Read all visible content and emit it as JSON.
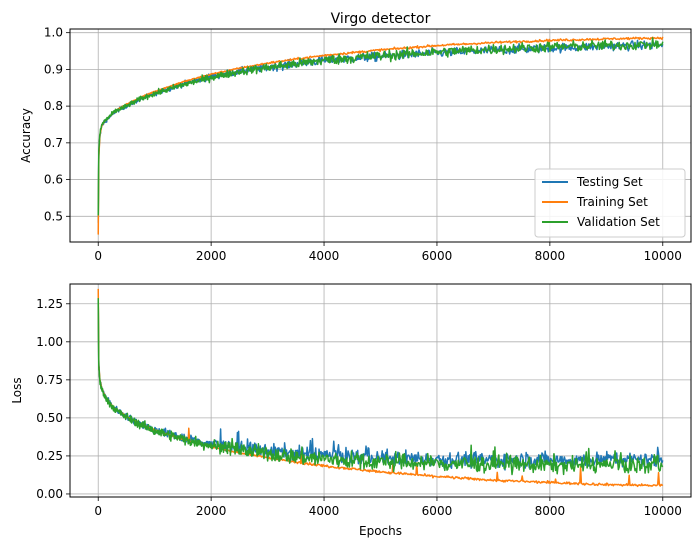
{
  "chart_data": [
    {
      "type": "line",
      "title": "Virgo detector",
      "xlabel": "",
      "ylabel": "Accuracy",
      "xlim": [
        -500,
        10500
      ],
      "ylim": [
        0.43,
        1.01
      ],
      "grid": true,
      "legend": "lower right",
      "xticks": [
        0,
        2000,
        4000,
        6000,
        8000,
        10000
      ],
      "yticks": [
        0.5,
        0.6,
        0.7,
        0.8,
        0.9,
        1.0
      ],
      "ytick_labels": [
        "0.5",
        "0.6",
        "0.7",
        "0.8",
        "0.9",
        "1.0"
      ],
      "x": [
        0,
        10,
        30,
        60,
        100,
        200,
        300,
        500,
        750,
        1000,
        1500,
        2000,
        2500,
        3000,
        3500,
        4000,
        5000,
        6000,
        7000,
        8000,
        9000,
        10000
      ],
      "series": [
        {
          "name": "Testing Set",
          "color": "#1f77b4",
          "noise": 0.006,
          "values": [
            0.48,
            0.67,
            0.72,
            0.745,
            0.755,
            0.77,
            0.785,
            0.8,
            0.82,
            0.835,
            0.86,
            0.88,
            0.895,
            0.905,
            0.915,
            0.925,
            0.935,
            0.945,
            0.952,
            0.958,
            0.963,
            0.967
          ]
        },
        {
          "name": "Training Set",
          "color": "#ff7f0e",
          "noise": 0.0015,
          "values": [
            0.45,
            0.66,
            0.72,
            0.745,
            0.757,
            0.772,
            0.787,
            0.805,
            0.824,
            0.84,
            0.866,
            0.887,
            0.903,
            0.917,
            0.928,
            0.938,
            0.953,
            0.965,
            0.973,
            0.979,
            0.983,
            0.986
          ]
        },
        {
          "name": "Validation Set",
          "color": "#2ca02c",
          "noise": 0.007,
          "values": [
            0.5,
            0.68,
            0.725,
            0.748,
            0.757,
            0.772,
            0.786,
            0.8,
            0.82,
            0.834,
            0.858,
            0.878,
            0.894,
            0.905,
            0.915,
            0.925,
            0.937,
            0.947,
            0.955,
            0.961,
            0.965,
            0.968
          ]
        }
      ]
    },
    {
      "type": "line",
      "title": "",
      "xlabel": "Epochs",
      "ylabel": "Loss",
      "xlim": [
        -500,
        10500
      ],
      "ylim": [
        -0.02,
        1.38
      ],
      "grid": true,
      "xticks": [
        0,
        2000,
        4000,
        6000,
        8000,
        10000
      ],
      "yticks": [
        0.0,
        0.25,
        0.5,
        0.75,
        1.0,
        1.25
      ],
      "ytick_labels": [
        "0.00",
        "0.25",
        "0.50",
        "0.75",
        "1.00",
        "1.25"
      ],
      "x": [
        0,
        10,
        30,
        60,
        100,
        200,
        300,
        500,
        750,
        1000,
        1500,
        2000,
        2500,
        3000,
        3500,
        4000,
        5000,
        6000,
        7000,
        8000,
        9000,
        10000
      ],
      "series": [
        {
          "name": "Testing Set",
          "color": "#1f77b4",
          "noise": 0.025,
          "values": [
            1.25,
            0.85,
            0.75,
            0.7,
            0.66,
            0.6,
            0.56,
            0.51,
            0.46,
            0.42,
            0.37,
            0.33,
            0.305,
            0.285,
            0.27,
            0.255,
            0.24,
            0.23,
            0.225,
            0.225,
            0.225,
            0.225
          ]
        },
        {
          "name": "Training Set",
          "color": "#ff7f0e",
          "noise": 0.004,
          "values": [
            1.35,
            0.85,
            0.75,
            0.7,
            0.66,
            0.6,
            0.56,
            0.51,
            0.46,
            0.42,
            0.36,
            0.31,
            0.27,
            0.24,
            0.21,
            0.185,
            0.145,
            0.115,
            0.09,
            0.075,
            0.062,
            0.055
          ]
        },
        {
          "name": "Validation Set",
          "color": "#2ca02c",
          "noise": 0.028,
          "values": [
            1.28,
            0.83,
            0.74,
            0.69,
            0.65,
            0.595,
            0.555,
            0.505,
            0.455,
            0.415,
            0.36,
            0.32,
            0.29,
            0.265,
            0.245,
            0.23,
            0.21,
            0.2,
            0.195,
            0.19,
            0.19,
            0.19
          ]
        }
      ]
    }
  ]
}
